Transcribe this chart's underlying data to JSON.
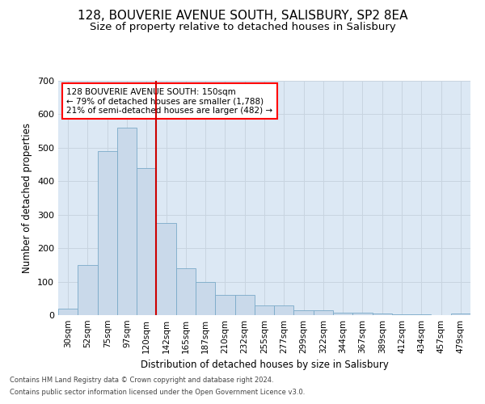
{
  "title1": "128, BOUVERIE AVENUE SOUTH, SALISBURY, SP2 8EA",
  "title2": "Size of property relative to detached houses in Salisbury",
  "xlabel": "Distribution of detached houses by size in Salisbury",
  "ylabel": "Number of detached properties",
  "footer1": "Contains HM Land Registry data © Crown copyright and database right 2024.",
  "footer2": "Contains public sector information licensed under the Open Government Licence v3.0.",
  "annotation_line1": "128 BOUVERIE AVENUE SOUTH: 150sqm",
  "annotation_line2": "← 79% of detached houses are smaller (1,788)",
  "annotation_line3": "21% of semi-detached houses are larger (482) →",
  "bar_color": "#c9d9ea",
  "bar_edge_color": "#7aaac8",
  "red_line_color": "#cc0000",
  "categories": [
    "30sqm",
    "52sqm",
    "75sqm",
    "97sqm",
    "120sqm",
    "142sqm",
    "165sqm",
    "187sqm",
    "210sqm",
    "232sqm",
    "255sqm",
    "277sqm",
    "299sqm",
    "322sqm",
    "344sqm",
    "367sqm",
    "389sqm",
    "412sqm",
    "434sqm",
    "457sqm",
    "479sqm"
  ],
  "values": [
    20,
    150,
    490,
    560,
    440,
    275,
    140,
    100,
    60,
    60,
    30,
    30,
    15,
    15,
    8,
    8,
    4,
    3,
    2,
    1,
    5
  ],
  "ylim": [
    0,
    700
  ],
  "yticks": [
    0,
    100,
    200,
    300,
    400,
    500,
    600,
    700
  ],
  "grid_color": "#c8d4e0",
  "bg_color": "#dce8f4",
  "title_fontsize": 11,
  "subtitle_fontsize": 9.5,
  "red_line_idx": 5
}
